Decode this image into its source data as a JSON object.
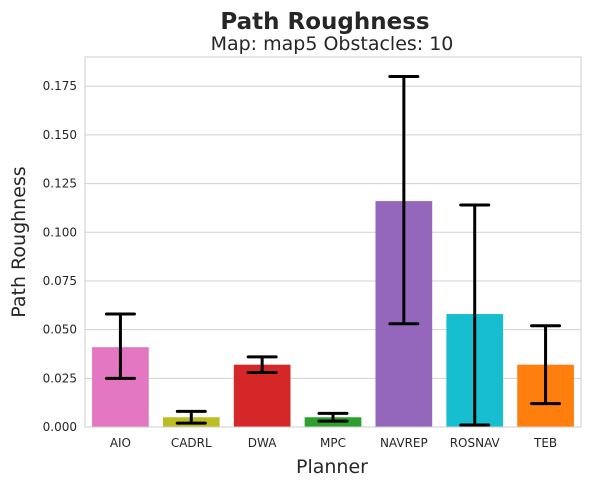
{
  "chart_data": {
    "type": "bar",
    "title": "Path Roughness",
    "subtitle": "Map: map5 Obstacles: 10",
    "xlabel": "Planner",
    "ylabel": "Path Roughness",
    "ylim": [
      0,
      0.19
    ],
    "yticks": [
      "0.000",
      "0.025",
      "0.050",
      "0.075",
      "0.100",
      "0.125",
      "0.150",
      "0.175"
    ],
    "grid": true,
    "categories": [
      "AIO",
      "CADRL",
      "DWA",
      "MPC",
      "NAVREP",
      "ROSNAV",
      "TEB"
    ],
    "values": [
      0.041,
      0.005,
      0.032,
      0.005,
      0.116,
      0.058,
      0.032
    ],
    "error_low": [
      0.025,
      0.002,
      0.028,
      0.003,
      0.053,
      0.001,
      0.012
    ],
    "error_high": [
      0.058,
      0.008,
      0.036,
      0.007,
      0.18,
      0.114,
      0.052
    ],
    "colors": [
      "#e377c2",
      "#bcbd22",
      "#d62728",
      "#2ca02c",
      "#9467bd",
      "#17becf",
      "#ff7f0e"
    ]
  }
}
